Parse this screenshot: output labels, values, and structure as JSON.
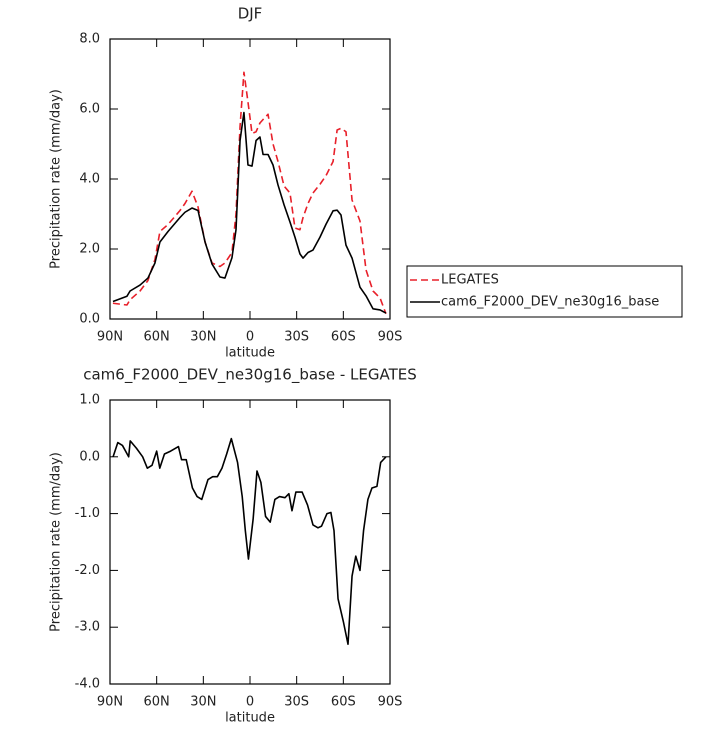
{
  "chart_data": [
    {
      "type": "line",
      "title": "DJF",
      "xlabel": "latitude",
      "ylabel": "Precipitation rate (mm/day)",
      "x": [
        88.1,
        79.1,
        77.1,
        70.7,
        65.6,
        61.1,
        57.9,
        52.7,
        45.0,
        41.8,
        37.3,
        33.4,
        28.9,
        24.4,
        19.3,
        16.1,
        11.6,
        9.0,
        6.4,
        3.9,
        1.3,
        -1.3,
        -3.9,
        -6.4,
        -8.4,
        -11.6,
        -14.8,
        -18.0,
        -21.9,
        -25.7,
        -28.9,
        -32.1,
        -34.1,
        -37.3,
        -40.5,
        -45.0,
        -48.9,
        -53.4,
        -56.0,
        -58.5,
        -61.7,
        -65.6,
        -70.7,
        -74.6,
        -79.1,
        -83.6,
        -87.4
      ],
      "series": [
        {
          "name": "LEGATES",
          "color": "#e8202a",
          "linestyle": "dashed",
          "values": [
            0.45,
            0.4,
            0.55,
            0.8,
            1.1,
            1.7,
            2.5,
            2.7,
            3.1,
            3.3,
            3.65,
            3.2,
            2.2,
            1.6,
            1.5,
            1.6,
            1.9,
            3.0,
            5.5,
            7.05,
            6.2,
            5.3,
            5.35,
            5.6,
            5.7,
            5.85,
            5.0,
            4.5,
            3.8,
            3.6,
            2.6,
            2.55,
            2.9,
            3.3,
            3.6,
            3.85,
            4.1,
            4.5,
            5.4,
            5.45,
            5.35,
            3.4,
            2.8,
            1.4,
            0.8,
            0.6,
            0.15
          ]
        },
        {
          "name": "cam6_F2000_DEV_ne30g16_base",
          "color": "#000000",
          "linestyle": "solid",
          "values": [
            0.5,
            0.65,
            0.8,
            0.97,
            1.17,
            1.6,
            2.2,
            2.5,
            2.9,
            3.05,
            3.17,
            3.1,
            2.2,
            1.57,
            1.2,
            1.17,
            1.75,
            2.55,
            5.1,
            5.9,
            4.4,
            4.37,
            5.1,
            5.2,
            4.7,
            4.7,
            4.4,
            3.83,
            3.26,
            2.77,
            2.34,
            1.86,
            1.74,
            1.9,
            1.97,
            2.34,
            2.71,
            3.09,
            3.11,
            2.97,
            2.11,
            1.74,
            0.91,
            0.66,
            0.29,
            0.26,
            0.17
          ]
        }
      ],
      "xlim": [
        90,
        -90
      ],
      "xticks": [
        {
          "value": 90,
          "label": "90N"
        },
        {
          "value": 60,
          "label": "60N"
        },
        {
          "value": 30,
          "label": "30N"
        },
        0,
        {
          "value": -30,
          "label": "30S"
        },
        {
          "value": -60,
          "label": "60S"
        },
        {
          "value": -90,
          "label": "90S"
        }
      ],
      "ylim": [
        0,
        8
      ],
      "yticks": [
        {
          "value": 0,
          "label": "0.0"
        },
        {
          "value": 2,
          "label": "2.0"
        },
        {
          "value": 4,
          "label": "4.0"
        },
        {
          "value": 6,
          "label": "6.0"
        },
        {
          "value": 8,
          "label": "8.0"
        }
      ],
      "legend": "outside right"
    },
    {
      "type": "line",
      "title": "cam6_F2000_DEV_ne30g16_base - LEGATES",
      "xlabel": "latitude",
      "ylabel": "Precipitation rate (mm/day)",
      "x": [
        88,
        85,
        82,
        78,
        77,
        73,
        69,
        66,
        63,
        60,
        58,
        55,
        51,
        46,
        44,
        41,
        37,
        34,
        31,
        27,
        24,
        21,
        18,
        15,
        12,
        8,
        5,
        3,
        1,
        -2,
        -4.5,
        -7,
        -10,
        -13,
        -16,
        -19,
        -22.5,
        -25,
        -27,
        -29.5,
        -33.5,
        -37,
        -40.5,
        -43.7,
        -46,
        -49.5,
        -52,
        -54,
        -56.6,
        -60,
        -63,
        -65.6,
        -68,
        -70.7,
        -73,
        -75.8,
        -78.4,
        -81.6,
        -84,
        -87.4
      ],
      "series": [
        {
          "color": "#000000",
          "linestyle": "solid",
          "values": [
            0.0,
            0.25,
            0.2,
            0.0,
            0.28,
            0.15,
            0.0,
            -0.2,
            -0.15,
            0.1,
            -0.2,
            0.05,
            0.1,
            0.18,
            -0.05,
            -0.05,
            -0.55,
            -0.7,
            -0.75,
            -0.4,
            -0.35,
            -0.35,
            -0.2,
            0.05,
            0.32,
            -0.1,
            -0.7,
            -1.3,
            -1.8,
            -1.1,
            -0.25,
            -0.45,
            -1.05,
            -1.15,
            -0.75,
            -0.7,
            -0.72,
            -0.65,
            -0.95,
            -0.62,
            -0.62,
            -0.85,
            -1.2,
            -1.25,
            -1.22,
            -1.0,
            -0.98,
            -1.3,
            -2.5,
            -2.9,
            -3.3,
            -2.1,
            -1.75,
            -2.0,
            -1.3,
            -0.75,
            -0.55,
            -0.52,
            -0.1,
            0.0
          ]
        }
      ],
      "xlim": [
        90,
        -90
      ],
      "xticks": [
        {
          "value": 90,
          "label": "90N"
        },
        {
          "value": 60,
          "label": "60N"
        },
        {
          "value": 30,
          "label": "30N"
        },
        0,
        {
          "value": -30,
          "label": "30S"
        },
        {
          "value": -60,
          "label": "60S"
        },
        {
          "value": -90,
          "label": "90S"
        }
      ],
      "ylim": [
        -4,
        1
      ],
      "yticks": [
        {
          "value": -4,
          "label": "-4.0"
        },
        {
          "value": -3,
          "label": "-3.0"
        },
        {
          "value": -2,
          "label": "-2.0"
        },
        {
          "value": -1,
          "label": "-1.0"
        },
        {
          "value": 0,
          "label": "0.0"
        },
        {
          "value": 1,
          "label": "1.0"
        }
      ]
    }
  ]
}
